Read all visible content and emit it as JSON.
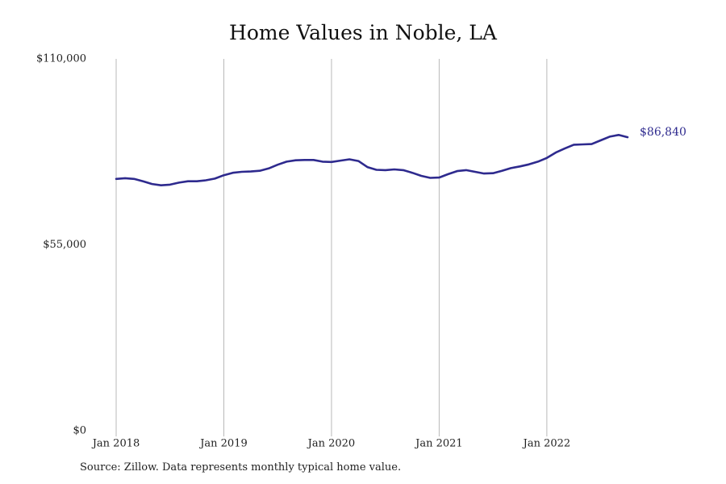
{
  "chart_data": {
    "type": "line",
    "title": "Home Values in Noble, LA",
    "y_ticks": [
      {
        "value": 110000,
        "label": "$110,000"
      },
      {
        "value": 55000,
        "label": "$55,000"
      },
      {
        "value": 0,
        "label": "$0"
      }
    ],
    "x_ticks": [
      {
        "value": "2018-01",
        "label": "Jan 2018"
      },
      {
        "value": "2019-01",
        "label": "Jan 2019"
      },
      {
        "value": "2020-01",
        "label": "Jan 2020"
      },
      {
        "value": "2021-01",
        "label": "Jan 2021"
      },
      {
        "value": "2022-01",
        "label": "Jan 2022"
      }
    ],
    "ylim": [
      0,
      110000
    ],
    "xlim": [
      "2018-01",
      "2022-10"
    ],
    "grid": "vertical at x ticks",
    "line_color": "#2e2a8e",
    "end_label": "$86,840",
    "series": [
      {
        "x": [
          "2018-01",
          "2018-02",
          "2018-03",
          "2018-04",
          "2018-05",
          "2018-06",
          "2018-07",
          "2018-08",
          "2018-09",
          "2018-10",
          "2018-11",
          "2018-12",
          "2019-01",
          "2019-02",
          "2019-03",
          "2019-04",
          "2019-05",
          "2019-06",
          "2019-07",
          "2019-08",
          "2019-09",
          "2019-10",
          "2019-11",
          "2019-12",
          "2020-01",
          "2020-02",
          "2020-03",
          "2020-04",
          "2020-05",
          "2020-06",
          "2020-07",
          "2020-08",
          "2020-09",
          "2020-10",
          "2020-11",
          "2020-12",
          "2021-01",
          "2021-02",
          "2021-03",
          "2021-04",
          "2021-05",
          "2021-06",
          "2021-07",
          "2021-08",
          "2021-09",
          "2021-10",
          "2021-11",
          "2021-12",
          "2022-01",
          "2022-02",
          "2022-03",
          "2022-04",
          "2022-05",
          "2022-06",
          "2022-07",
          "2022-08",
          "2022-09",
          "2022-10"
        ],
        "values": [
          74500,
          74700,
          74500,
          73800,
          73000,
          72600,
          72800,
          73400,
          73800,
          73800,
          74100,
          74600,
          75600,
          76300,
          76600,
          76700,
          76900,
          77600,
          78700,
          79600,
          80000,
          80100,
          80100,
          79600,
          79500,
          79900,
          80300,
          79800,
          78000,
          77200,
          77100,
          77300,
          77100,
          76300,
          75400,
          74800,
          74900,
          75900,
          76800,
          77100,
          76600,
          76100,
          76200,
          76900,
          77700,
          78200,
          78800,
          79600,
          80700,
          82300,
          83500,
          84600,
          84700,
          84800,
          85900,
          87000,
          87500,
          86840
        ]
      }
    ]
  },
  "source": "Source: Zillow. Data represents monthly typical home value."
}
